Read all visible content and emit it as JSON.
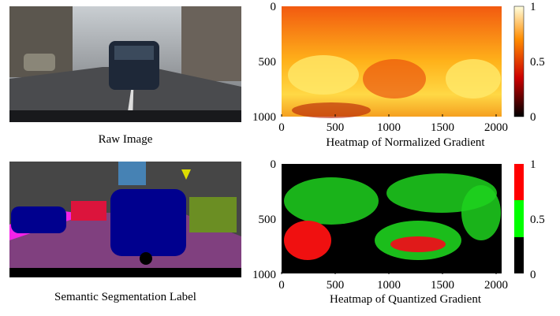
{
  "panels": [
    {
      "caption": "Raw Image"
    },
    {
      "caption": "Semantic Segmentation Label"
    },
    {
      "caption": "Heatmap of Normalized Gradient",
      "xticks": [
        0,
        500,
        1000,
        1500,
        2000
      ],
      "yticks": [
        0,
        500,
        1000
      ],
      "colorbar_ticks": [
        1,
        0.5,
        0
      ]
    },
    {
      "caption": "Heatmap of Quantized Gradient",
      "xticks": [
        0,
        500,
        1000,
        1500,
        2000
      ],
      "yticks": [
        0,
        500,
        1000
      ],
      "colorbar_ticks": [
        1,
        0.5,
        0
      ]
    }
  ]
}
